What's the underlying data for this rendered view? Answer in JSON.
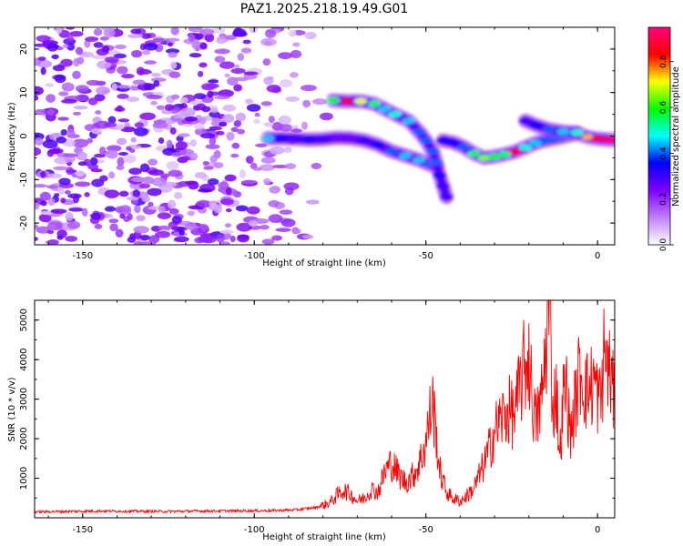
{
  "title": "PAZ1.2025.218.19.49.G01",
  "chart_data": [
    {
      "type": "heatmap",
      "title": "PAZ1.2025.218.19.49.G01",
      "xlabel": "Height of straight line (km)",
      "ylabel": "Frequency (Hz)",
      "xlim": [
        -164,
        5
      ],
      "ylim": [
        -25,
        25
      ],
      "xticks": [
        -150,
        -100,
        -50,
        0
      ],
      "yticks": [
        -20,
        -10,
        0,
        10,
        20
      ],
      "colorbar": {
        "label": "Normalized spectral amplitude",
        "range": [
          0,
          0.95
        ],
        "ticks": [
          0.0,
          0.2,
          0.4,
          0.6,
          0.8
        ],
        "colormap": [
          "#ffffff",
          "#c080ff",
          "#8000ff",
          "#0000ff",
          "#00ffff",
          "#00ff00",
          "#ffff00",
          "#ff0000",
          "#ff0080"
        ]
      },
      "ridges": [
        {
          "points": [
            [
              -96,
              -0.5
            ],
            [
              -92,
              -0.5
            ],
            [
              -88,
              -0.6
            ],
            [
              -84,
              -0.8
            ],
            [
              -80,
              -0.7
            ],
            [
              -76,
              -0.4
            ],
            [
              -72,
              -0.5
            ],
            [
              -68,
              -1.0
            ],
            [
              -64,
              -2.0
            ],
            [
              -60,
              -3.5
            ],
            [
              -56,
              -4.5
            ],
            [
              -52,
              -5.5
            ],
            [
              -49,
              -6.5
            ],
            [
              -47,
              -7.0
            ]
          ],
          "amplitudes": [
            0.45,
            0.35,
            0.3,
            0.35,
            0.3,
            0.25,
            0.25,
            0.3,
            0.35,
            0.4,
            0.45,
            0.45,
            0.4,
            0.35
          ]
        },
        {
          "points": [
            [
              -77,
              8.2
            ],
            [
              -73,
              8.0
            ],
            [
              -69,
              8.0
            ],
            [
              -65,
              7.4
            ],
            [
              -62,
              6.2
            ],
            [
              -59,
              5.0
            ],
            [
              -55,
              3.5
            ],
            [
              -52,
              1.0
            ],
            [
              -50,
              -1.0
            ],
            [
              -48,
              -3.5
            ],
            [
              -47,
              -6.0
            ],
            [
              -46,
              -9.0
            ],
            [
              -45,
              -11.5
            ],
            [
              -44,
              -14.0
            ]
          ],
          "amplitudes": [
            0.6,
            0.85,
            0.7,
            0.55,
            0.45,
            0.5,
            0.45,
            0.4,
            0.4,
            0.4,
            0.4,
            0.35,
            0.3,
            0.3
          ]
        },
        {
          "points": [
            [
              -45,
              -1.0
            ],
            [
              -42,
              -1.5
            ],
            [
              -39,
              -2.5
            ],
            [
              -36,
              -4.0
            ],
            [
              -33,
              -5.0
            ],
            [
              -30,
              -4.7
            ],
            [
              -27,
              -4.2
            ],
            [
              -24,
              -3.6
            ],
            [
              -21,
              -2.6
            ],
            [
              -18,
              -1.6
            ],
            [
              -15,
              -0.9
            ],
            [
              -12,
              -0.5
            ],
            [
              -9,
              0.0
            ],
            [
              -6,
              0.6
            ],
            [
              -3,
              -0.2
            ],
            [
              0,
              -0.6
            ],
            [
              3,
              -0.8
            ],
            [
              5,
              -0.9
            ]
          ],
          "amplitudes": [
            0.35,
            0.35,
            0.4,
            0.55,
            0.65,
            0.6,
            0.55,
            0.9,
            0.5,
            0.45,
            0.4,
            0.4,
            0.45,
            0.55,
            0.75,
            0.85,
            0.9,
            0.95
          ]
        },
        {
          "points": [
            [
              -21,
              3.5
            ],
            [
              -18,
              2.5
            ],
            [
              -14,
              1.5
            ],
            [
              -10,
              1.0
            ],
            [
              -6,
              0.8
            ]
          ],
          "amplitudes": [
            0.3,
            0.35,
            0.4,
            0.45,
            0.5
          ]
        }
      ],
      "noise_region": {
        "x": [
          -164,
          -75
        ],
        "y": [
          -25,
          25
        ],
        "amplitude_range": [
          0.05,
          0.3
        ]
      }
    },
    {
      "type": "line",
      "xlabel": "Height of straight line (km)",
      "ylabel": "SNR (10 * v/v)",
      "xlim": [
        -164,
        5
      ],
      "ylim": [
        0,
        5500
      ],
      "xticks": [
        -150,
        -100,
        -50,
        0
      ],
      "yticks": [
        1000,
        2000,
        3000,
        4000,
        5000
      ],
      "color": "#ff0000",
      "series": [
        {
          "x": [
            -164,
            -155,
            -145,
            -135,
            -125,
            -115,
            -105,
            -95,
            -88,
            -82,
            -78,
            -76,
            -74,
            -72,
            -70,
            -68,
            -66,
            -64,
            -62,
            -60,
            -58,
            -56,
            -54,
            -52,
            -50,
            -49,
            -48,
            -47,
            -46,
            -44,
            -42,
            -40,
            -38,
            -36,
            -34,
            -32,
            -30,
            -28,
            -26,
            -24,
            -22,
            -20,
            -19,
            -18,
            -17,
            -16,
            -15,
            -14,
            -13,
            -12,
            -11,
            -10,
            -9,
            -8,
            -7,
            -6,
            -5,
            -4,
            -3,
            -2,
            -1,
            0,
            1,
            2,
            3,
            4,
            5
          ],
          "y": [
            150,
            160,
            170,
            165,
            160,
            170,
            175,
            180,
            200,
            260,
            380,
            560,
            700,
            600,
            430,
            500,
            720,
            650,
            1150,
            1400,
            1100,
            900,
            1050,
            1350,
            1900,
            2500,
            2900,
            2100,
            1200,
            650,
            480,
            420,
            560,
            750,
            1150,
            1600,
            2200,
            2500,
            2700,
            2600,
            3600,
            4100,
            3000,
            2400,
            2700,
            3200,
            4400,
            5400,
            2700,
            3300,
            1500,
            3000,
            3300,
            2100,
            2600,
            3200,
            3800,
            3400,
            3200,
            3300,
            3500,
            3100,
            2900,
            4300,
            3800,
            3500,
            2800
          ]
        }
      ]
    }
  ]
}
